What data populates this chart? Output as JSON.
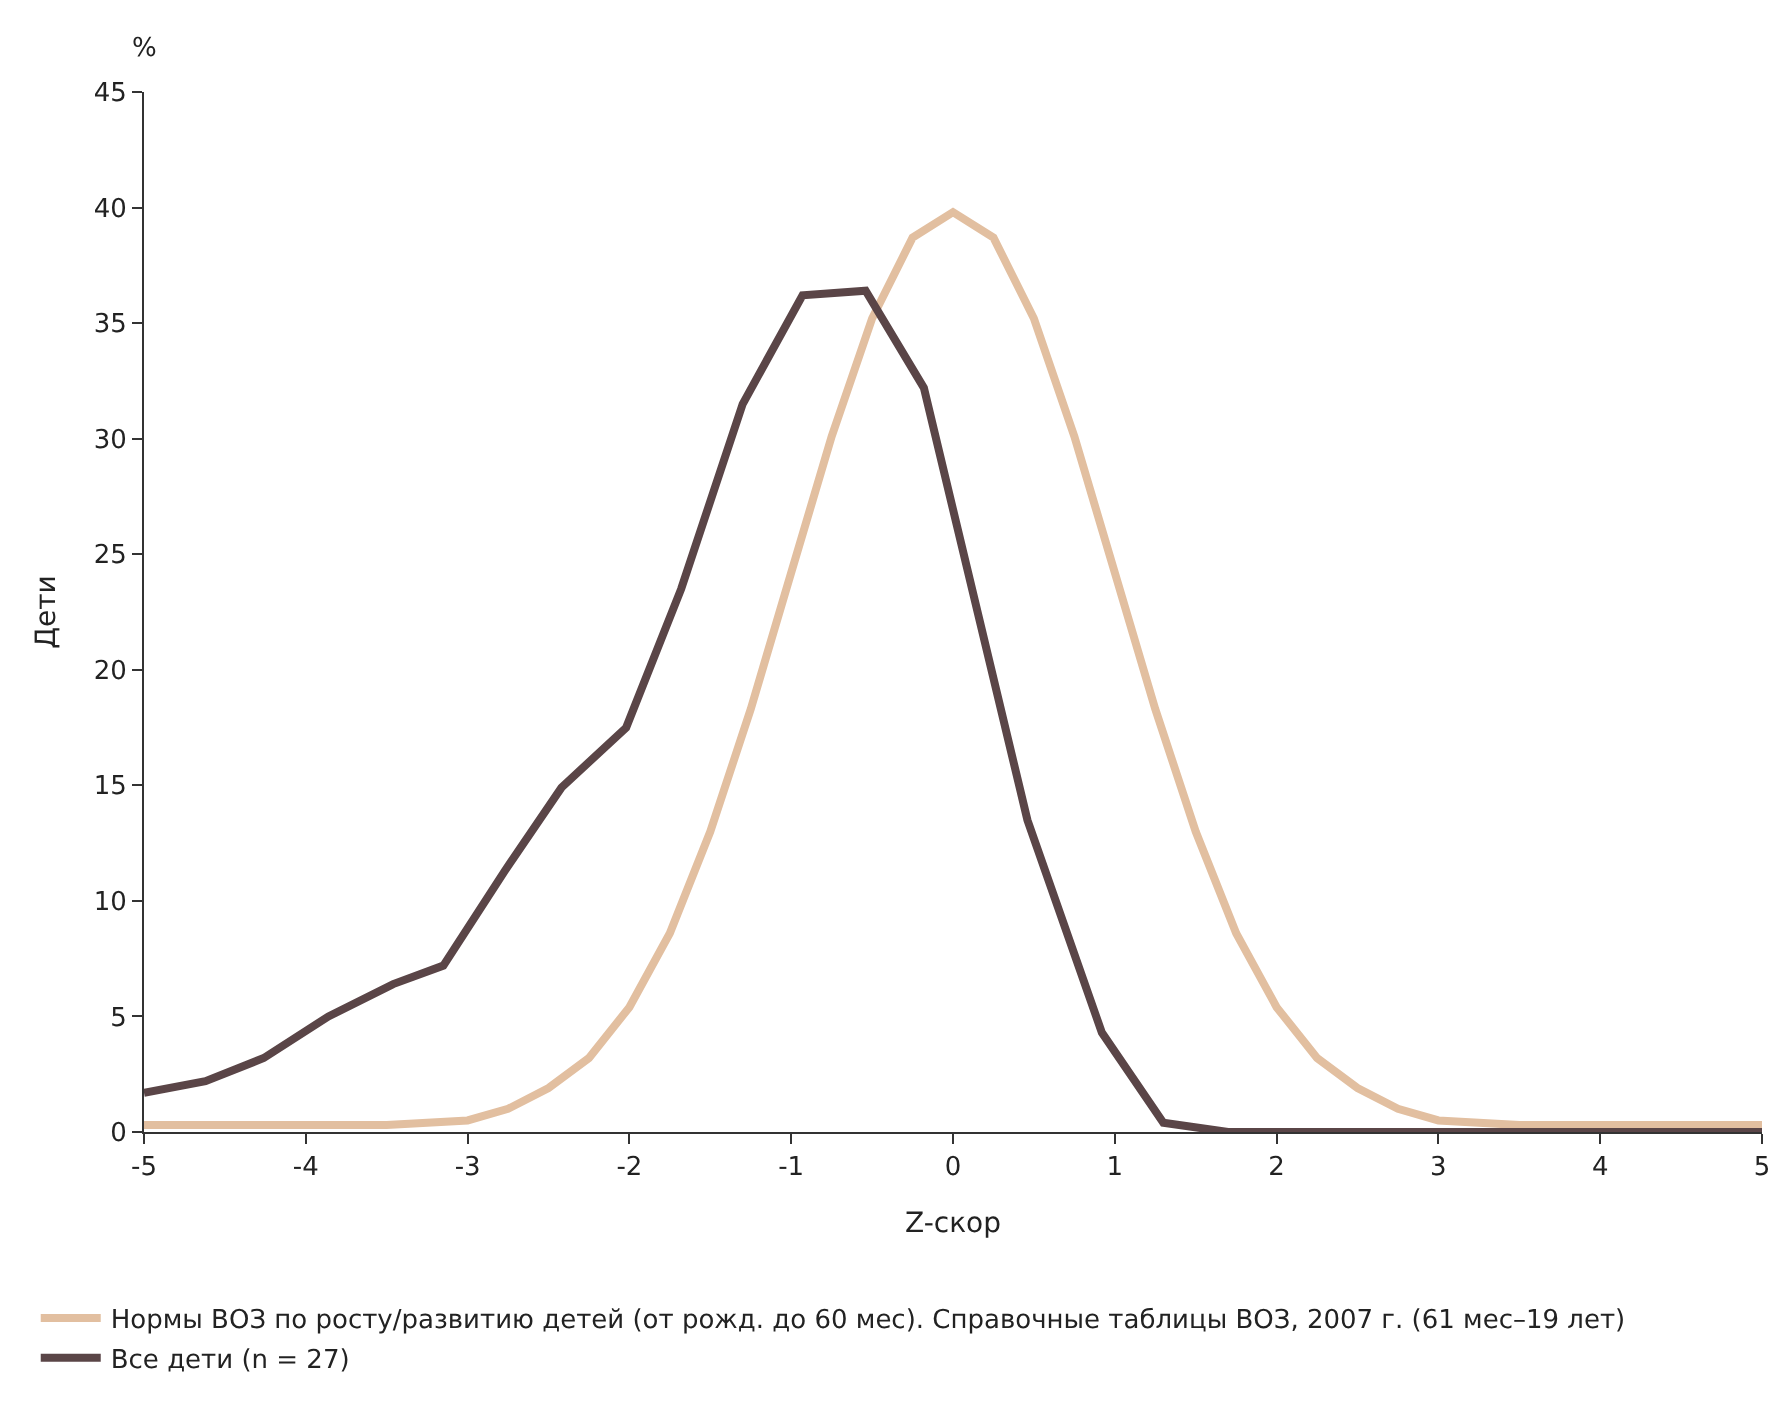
{
  "chart_data": {
    "type": "line",
    "xlabel": "Z-скор",
    "ylabel": "Дети",
    "annotations": [
      "%"
    ],
    "xlim": [
      -5,
      5
    ],
    "xticks": [
      -5,
      -4,
      -3,
      -2,
      -1,
      0,
      1,
      2,
      3,
      4,
      5
    ],
    "ylim": [
      0,
      45
    ],
    "yticks": [
      0,
      5,
      10,
      15,
      20,
      25,
      30,
      35,
      40,
      45
    ],
    "legend": "bottom",
    "marker": "none",
    "line_style": "solid",
    "series": [
      {
        "name": "Нормы ВОЗ по росту/развитию детей (от рожд. до 60 мес). Справочные таблицы ВОЗ, 2007 г. (61 мес–19 лет)",
        "color": "#e2bfa0",
        "x": [
          -5,
          -4,
          -3.5,
          -3,
          -2.75,
          -2.5,
          -2.25,
          -2,
          -1.75,
          -1.5,
          -1.25,
          -1,
          -0.75,
          -0.5,
          -0.25,
          0,
          0.25,
          0.5,
          0.75,
          1,
          1.25,
          1.5,
          1.75,
          2,
          2.25,
          2.5,
          2.75,
          3,
          3.5,
          4,
          5
        ],
        "values": [
          0.3,
          0.3,
          0.3,
          0.5,
          1.0,
          1.9,
          3.2,
          5.4,
          8.6,
          13,
          18.3,
          24.2,
          30.1,
          35.2,
          38.7,
          39.8,
          38.7,
          35.2,
          30.1,
          24.2,
          18.3,
          13,
          8.6,
          5.4,
          3.2,
          1.9,
          1.0,
          0.5,
          0.3,
          0.3,
          0.3
        ]
      },
      {
        "name": "Все дети (n = 27)",
        "color": "#5a4547",
        "x": [
          -5,
          -4.62,
          -4.26,
          -3.86,
          -3.46,
          -3.15,
          -2.77,
          -2.42,
          -2.02,
          -1.68,
          -1.3,
          -0.93,
          -0.54,
          -0.18,
          0.46,
          0.92,
          1.3,
          1.7,
          5
        ],
        "values": [
          1.7,
          2.2,
          3.2,
          5.0,
          6.4,
          7.2,
          11.3,
          14.9,
          17.5,
          23.5,
          31.5,
          36.2,
          36.4,
          32.2,
          13.5,
          4.3,
          0.4,
          0,
          0
        ]
      }
    ]
  }
}
